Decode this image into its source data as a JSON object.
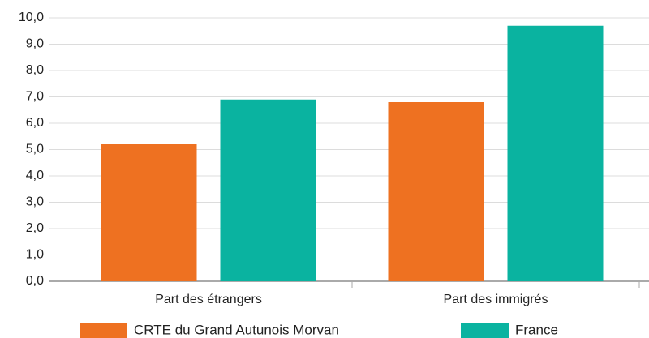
{
  "chart_data": {
    "type": "bar",
    "categories": [
      "Part des étrangers",
      "Part des immigrés"
    ],
    "series": [
      {
        "name": "CRTE du Grand Autunois Morvan",
        "color": "#ee7121",
        "values": [
          5.2,
          6.8
        ]
      },
      {
        "name": "France",
        "color": "#0ab3a0",
        "values": [
          6.9,
          9.7
        ]
      }
    ],
    "ylim": [
      0,
      10
    ],
    "yticks": [
      {
        "value": 0,
        "label": "0,0"
      },
      {
        "value": 1,
        "label": "1,0"
      },
      {
        "value": 2,
        "label": "2,0"
      },
      {
        "value": 3,
        "label": "3,0"
      },
      {
        "value": 4,
        "label": "4,0"
      },
      {
        "value": 5,
        "label": "5,0"
      },
      {
        "value": 6,
        "label": "6,0"
      },
      {
        "value": 7,
        "label": "7,0"
      },
      {
        "value": 8,
        "label": "8,0"
      },
      {
        "value": 9,
        "label": "9,0"
      },
      {
        "value": 10,
        "label": "10,0"
      }
    ],
    "grid": true,
    "legend": "bottom"
  }
}
